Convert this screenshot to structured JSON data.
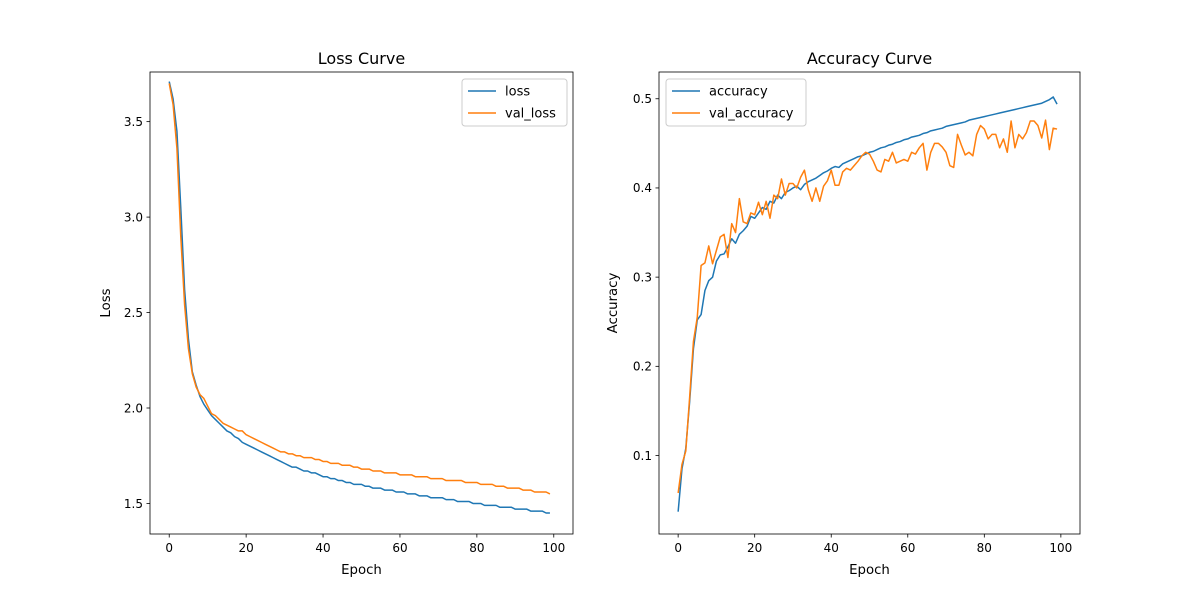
{
  "chart_data": [
    {
      "type": "line",
      "title": "Loss Curve",
      "xlabel": "Epoch",
      "ylabel": "Loss",
      "xlim": [
        -5,
        105
      ],
      "ylim": [
        1.34,
        3.76
      ],
      "xticks": [
        0,
        20,
        40,
        60,
        80,
        100
      ],
      "yticks": [
        1.5,
        2.0,
        2.5,
        3.0,
        3.5
      ],
      "ytick_labels": [
        "1.5",
        "2.0",
        "2.5",
        "3.0",
        "3.5"
      ],
      "legend": "top-right",
      "grid": false,
      "series": [
        {
          "name": "loss",
          "color": "#1f77b4",
          "values": [
            3.71,
            3.62,
            3.45,
            3.05,
            2.62,
            2.36,
            2.19,
            2.12,
            2.06,
            2.02,
            1.99,
            1.96,
            1.94,
            1.92,
            1.9,
            1.88,
            1.87,
            1.85,
            1.84,
            1.82,
            1.81,
            1.8,
            1.79,
            1.78,
            1.77,
            1.76,
            1.75,
            1.74,
            1.73,
            1.72,
            1.71,
            1.7,
            1.69,
            1.69,
            1.68,
            1.67,
            1.67,
            1.66,
            1.66,
            1.65,
            1.64,
            1.64,
            1.63,
            1.63,
            1.62,
            1.62,
            1.61,
            1.61,
            1.6,
            1.6,
            1.6,
            1.59,
            1.59,
            1.58,
            1.58,
            1.58,
            1.57,
            1.57,
            1.57,
            1.56,
            1.56,
            1.56,
            1.55,
            1.55,
            1.55,
            1.54,
            1.54,
            1.54,
            1.53,
            1.53,
            1.53,
            1.53,
            1.52,
            1.52,
            1.52,
            1.51,
            1.51,
            1.51,
            1.51,
            1.5,
            1.5,
            1.5,
            1.49,
            1.49,
            1.49,
            1.49,
            1.48,
            1.48,
            1.48,
            1.48,
            1.47,
            1.47,
            1.47,
            1.47,
            1.46,
            1.46,
            1.46,
            1.46,
            1.45,
            1.45
          ]
        },
        {
          "name": "val_loss",
          "color": "#ff7f0e",
          "values": [
            3.7,
            3.59,
            3.36,
            2.9,
            2.54,
            2.31,
            2.18,
            2.11,
            2.07,
            2.05,
            2.01,
            1.97,
            1.96,
            1.94,
            1.92,
            1.91,
            1.9,
            1.89,
            1.88,
            1.88,
            1.86,
            1.85,
            1.84,
            1.83,
            1.82,
            1.81,
            1.8,
            1.79,
            1.78,
            1.77,
            1.77,
            1.76,
            1.76,
            1.75,
            1.75,
            1.74,
            1.74,
            1.74,
            1.73,
            1.73,
            1.72,
            1.72,
            1.71,
            1.71,
            1.71,
            1.7,
            1.7,
            1.7,
            1.69,
            1.69,
            1.68,
            1.68,
            1.68,
            1.67,
            1.67,
            1.67,
            1.66,
            1.66,
            1.66,
            1.66,
            1.65,
            1.65,
            1.65,
            1.65,
            1.64,
            1.64,
            1.64,
            1.64,
            1.63,
            1.63,
            1.63,
            1.63,
            1.62,
            1.62,
            1.62,
            1.62,
            1.62,
            1.61,
            1.61,
            1.61,
            1.61,
            1.6,
            1.6,
            1.6,
            1.6,
            1.59,
            1.59,
            1.59,
            1.58,
            1.58,
            1.58,
            1.58,
            1.57,
            1.57,
            1.57,
            1.56,
            1.56,
            1.56,
            1.56,
            1.55
          ]
        }
      ]
    },
    {
      "type": "line",
      "title": "Accuracy Curve",
      "xlabel": "Epoch",
      "ylabel": "Accuracy",
      "xlim": [
        -5,
        105
      ],
      "ylim": [
        0.012,
        0.53
      ],
      "xticks": [
        0,
        20,
        40,
        60,
        80,
        100
      ],
      "yticks": [
        0.1,
        0.2,
        0.3,
        0.4,
        0.5
      ],
      "ytick_labels": [
        "0.1",
        "0.2",
        "0.3",
        "0.4",
        "0.5"
      ],
      "legend": "top-left",
      "grid": false,
      "series": [
        {
          "name": "accuracy",
          "color": "#1f77b4",
          "values": [
            0.037,
            0.085,
            0.108,
            0.16,
            0.22,
            0.252,
            0.258,
            0.285,
            0.296,
            0.3,
            0.318,
            0.325,
            0.326,
            0.334,
            0.343,
            0.338,
            0.348,
            0.352,
            0.357,
            0.368,
            0.366,
            0.372,
            0.378,
            0.376,
            0.385,
            0.383,
            0.392,
            0.388,
            0.395,
            0.397,
            0.4,
            0.402,
            0.398,
            0.404,
            0.407,
            0.409,
            0.411,
            0.414,
            0.417,
            0.419,
            0.422,
            0.424,
            0.423,
            0.427,
            0.429,
            0.431,
            0.433,
            0.435,
            0.436,
            0.438,
            0.44,
            0.441,
            0.443,
            0.445,
            0.446,
            0.448,
            0.449,
            0.451,
            0.452,
            0.454,
            0.455,
            0.457,
            0.458,
            0.459,
            0.461,
            0.462,
            0.464,
            0.465,
            0.466,
            0.467,
            0.469,
            0.47,
            0.471,
            0.472,
            0.473,
            0.474,
            0.476,
            0.477,
            0.478,
            0.479,
            0.48,
            0.481,
            0.482,
            0.483,
            0.484,
            0.485,
            0.486,
            0.487,
            0.488,
            0.489,
            0.49,
            0.491,
            0.492,
            0.493,
            0.494,
            0.495,
            0.497,
            0.499,
            0.502,
            0.494
          ]
        },
        {
          "name": "val_accuracy",
          "color": "#ff7f0e",
          "values": [
            0.058,
            0.09,
            0.105,
            0.165,
            0.228,
            0.255,
            0.313,
            0.316,
            0.335,
            0.315,
            0.33,
            0.345,
            0.348,
            0.322,
            0.36,
            0.35,
            0.388,
            0.362,
            0.36,
            0.372,
            0.37,
            0.384,
            0.37,
            0.385,
            0.366,
            0.392,
            0.388,
            0.41,
            0.392,
            0.405,
            0.405,
            0.4,
            0.412,
            0.42,
            0.398,
            0.385,
            0.4,
            0.385,
            0.402,
            0.408,
            0.42,
            0.403,
            0.403,
            0.418,
            0.422,
            0.42,
            0.425,
            0.43,
            0.436,
            0.44,
            0.438,
            0.43,
            0.42,
            0.418,
            0.432,
            0.43,
            0.44,
            0.428,
            0.43,
            0.432,
            0.43,
            0.44,
            0.438,
            0.445,
            0.45,
            0.42,
            0.44,
            0.45,
            0.45,
            0.446,
            0.44,
            0.425,
            0.423,
            0.46,
            0.448,
            0.437,
            0.44,
            0.436,
            0.46,
            0.47,
            0.466,
            0.455,
            0.46,
            0.46,
            0.445,
            0.455,
            0.44,
            0.475,
            0.445,
            0.46,
            0.455,
            0.462,
            0.475,
            0.475,
            0.47,
            0.456,
            0.476,
            0.443,
            0.467,
            0.466
          ]
        }
      ]
    }
  ]
}
